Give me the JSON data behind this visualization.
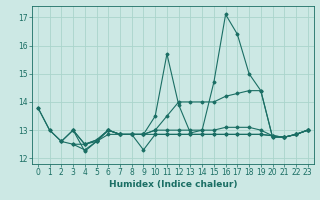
{
  "xlabel": "Humidex (Indice chaleur)",
  "background_color": "#cce8e4",
  "grid_color": "#aad4cc",
  "line_color": "#1a6e64",
  "xlim": [
    -0.5,
    23.5
  ],
  "ylim": [
    11.8,
    17.4
  ],
  "yticks": [
    12,
    13,
    14,
    15,
    16,
    17
  ],
  "xticks": [
    0,
    1,
    2,
    3,
    4,
    5,
    6,
    7,
    8,
    9,
    10,
    11,
    12,
    13,
    14,
    15,
    16,
    17,
    18,
    19,
    20,
    21,
    22,
    23
  ],
  "series": [
    [
      [
        0,
        13.8
      ],
      [
        1,
        13.0
      ],
      [
        2,
        12.6
      ],
      [
        3,
        13.0
      ],
      [
        4,
        12.25
      ],
      [
        5,
        12.6
      ],
      [
        6,
        13.0
      ],
      [
        7,
        12.85
      ],
      [
        8,
        12.85
      ],
      [
        9,
        12.85
      ],
      [
        10,
        13.0
      ],
      [
        11,
        13.0
      ],
      [
        12,
        13.0
      ],
      [
        13,
        13.0
      ],
      [
        14,
        13.0
      ],
      [
        15,
        13.0
      ],
      [
        16,
        13.1
      ],
      [
        17,
        13.1
      ],
      [
        18,
        13.1
      ],
      [
        19,
        13.0
      ],
      [
        20,
        12.8
      ],
      [
        21,
        12.75
      ],
      [
        22,
        12.85
      ],
      [
        23,
        13.0
      ]
    ],
    [
      [
        0,
        13.8
      ],
      [
        1,
        13.0
      ],
      [
        2,
        12.6
      ],
      [
        3,
        13.0
      ],
      [
        4,
        12.5
      ],
      [
        5,
        12.6
      ],
      [
        6,
        13.0
      ],
      [
        7,
        12.85
      ],
      [
        8,
        12.85
      ],
      [
        9,
        12.85
      ],
      [
        10,
        13.5
      ],
      [
        11,
        15.7
      ],
      [
        12,
        13.9
      ],
      [
        13,
        12.9
      ],
      [
        14,
        13.0
      ],
      [
        15,
        14.7
      ],
      [
        16,
        17.1
      ],
      [
        17,
        16.4
      ],
      [
        18,
        15.0
      ],
      [
        19,
        14.4
      ],
      [
        20,
        12.75
      ],
      [
        21,
        12.75
      ],
      [
        22,
        12.85
      ],
      [
        23,
        13.0
      ]
    ],
    [
      [
        3,
        13.0
      ],
      [
        4,
        12.5
      ],
      [
        5,
        12.65
      ],
      [
        6,
        13.0
      ],
      [
        7,
        12.85
      ],
      [
        8,
        12.85
      ],
      [
        9,
        12.3
      ],
      [
        10,
        12.85
      ],
      [
        11,
        12.85
      ],
      [
        12,
        12.85
      ],
      [
        13,
        12.85
      ],
      [
        14,
        12.85
      ],
      [
        15,
        12.85
      ],
      [
        16,
        12.85
      ],
      [
        17,
        12.85
      ],
      [
        18,
        12.85
      ],
      [
        19,
        12.85
      ],
      [
        20,
        12.8
      ],
      [
        21,
        12.75
      ],
      [
        22,
        12.85
      ],
      [
        23,
        13.0
      ]
    ],
    [
      [
        3,
        12.5
      ],
      [
        4,
        12.3
      ],
      [
        5,
        12.6
      ],
      [
        6,
        12.85
      ],
      [
        7,
        12.85
      ],
      [
        8,
        12.85
      ],
      [
        9,
        12.85
      ],
      [
        10,
        12.85
      ],
      [
        11,
        12.85
      ],
      [
        12,
        12.85
      ],
      [
        13,
        12.85
      ],
      [
        14,
        12.85
      ],
      [
        15,
        12.85
      ],
      [
        16,
        12.85
      ],
      [
        17,
        12.85
      ],
      [
        18,
        12.85
      ],
      [
        19,
        12.85
      ],
      [
        20,
        12.8
      ],
      [
        21,
        12.75
      ],
      [
        22,
        12.85
      ],
      [
        23,
        13.0
      ]
    ],
    [
      [
        2,
        12.6
      ],
      [
        3,
        12.5
      ],
      [
        4,
        12.5
      ],
      [
        5,
        12.65
      ],
      [
        6,
        13.0
      ],
      [
        7,
        12.85
      ],
      [
        8,
        12.85
      ],
      [
        9,
        12.85
      ],
      [
        10,
        13.0
      ],
      [
        11,
        13.5
      ],
      [
        12,
        14.0
      ],
      [
        13,
        14.0
      ],
      [
        14,
        14.0
      ],
      [
        15,
        14.0
      ],
      [
        16,
        14.2
      ],
      [
        17,
        14.3
      ],
      [
        18,
        14.4
      ],
      [
        19,
        14.4
      ],
      [
        20,
        12.75
      ],
      [
        21,
        12.75
      ],
      [
        22,
        12.85
      ],
      [
        23,
        13.0
      ]
    ]
  ],
  "marker": "D",
  "marker_size": 1.5,
  "line_width": 0.8
}
